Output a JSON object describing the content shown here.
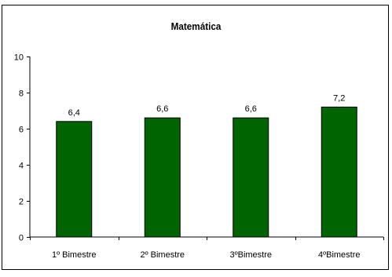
{
  "chart_data": {
    "type": "bar",
    "title": "Matemática",
    "categories": [
      "1º Bimestre",
      "2º Bimestre",
      "3ºBimestre",
      "4ºBimestre"
    ],
    "values": [
      6.4,
      6.6,
      6.6,
      7.2
    ],
    "data_labels": [
      "6,4",
      "6,6",
      "6,6",
      "7,2"
    ],
    "ylim": [
      0,
      10
    ],
    "yticks": [
      "0",
      "2",
      "4",
      "6",
      "8",
      "10"
    ],
    "ytick_values": [
      0,
      2,
      4,
      6,
      8,
      10
    ],
    "grid": false,
    "legend": "none",
    "bar_color": "#006400",
    "bar_edge_color": "#000000"
  }
}
